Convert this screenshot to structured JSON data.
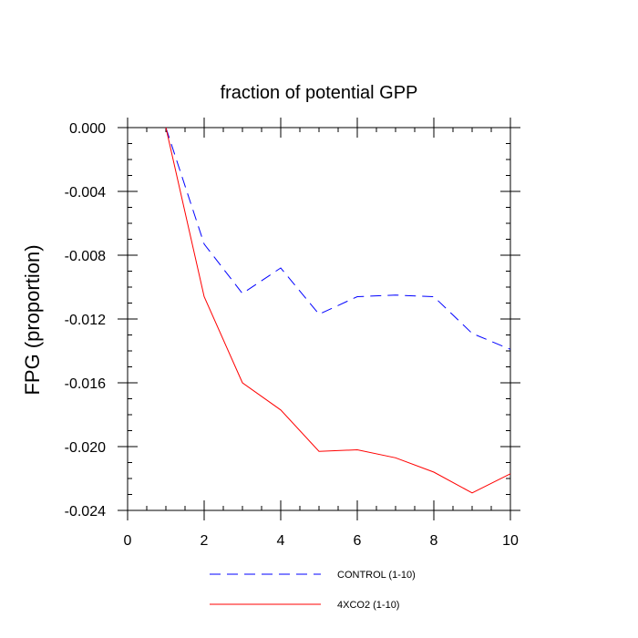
{
  "chart_data": {
    "type": "line",
    "title": "fraction of potential GPP",
    "xlabel": "",
    "ylabel": "FPG  (proportion)",
    "xlim": [
      0,
      10
    ],
    "ylim": [
      -0.024,
      0.0
    ],
    "xticks": [
      0,
      2,
      4,
      6,
      8,
      10
    ],
    "xtick_labels": [
      "0",
      "2",
      "4",
      "6",
      "8",
      "10"
    ],
    "yticks": [
      0.0,
      -0.004,
      -0.008,
      -0.012,
      -0.016,
      -0.02,
      -0.024
    ],
    "ytick_labels": [
      "0.000",
      "-0.004",
      "-0.008",
      "-0.012",
      "-0.016",
      "-0.020",
      "-0.024"
    ],
    "grid": false,
    "legend_position": "bottom",
    "series": [
      {
        "name": "CONTROL (1-10)",
        "color": "#0000ff",
        "style": "dashed",
        "x": [
          1,
          2,
          3,
          4,
          5,
          6,
          7,
          8,
          9,
          10
        ],
        "values": [
          0.0,
          -0.0073,
          -0.0104,
          -0.0088,
          -0.0117,
          -0.0106,
          -0.0105,
          -0.0106,
          -0.0129,
          -0.0139
        ]
      },
      {
        "name": "4XCO2 (1-10)",
        "color": "#ff0000",
        "style": "solid",
        "x": [
          1,
          2,
          3,
          4,
          5,
          6,
          7,
          8,
          9,
          10
        ],
        "values": [
          0.0,
          -0.0106,
          -0.016,
          -0.0177,
          -0.0203,
          -0.0202,
          -0.0207,
          -0.0216,
          -0.0229,
          -0.0217
        ]
      }
    ]
  }
}
